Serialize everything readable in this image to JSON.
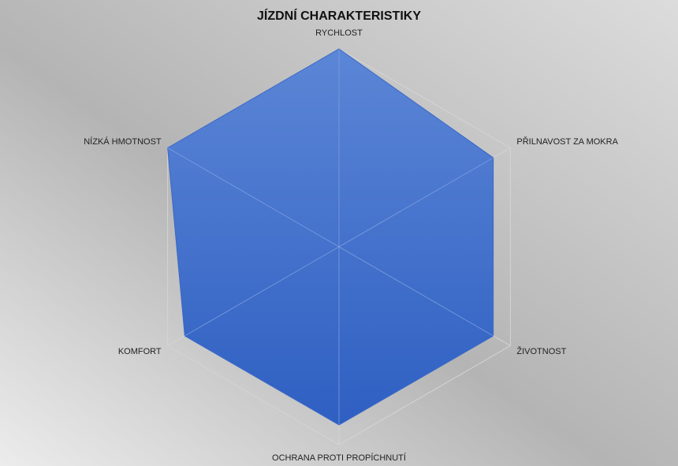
{
  "chart_data": {
    "type": "radar",
    "title": "JÍZDNÍ CHARAKTERISTIKY",
    "categories": [
      "RYCHLOST",
      "PŘILNAVOST ZA MOKRA",
      "ŽIVOTNOST",
      "OCHRANA PROTI PROPÍCHNUTÍ",
      "KOMFORT",
      "NÍZKÁ HMOTNOST"
    ],
    "values": [
      5,
      4.5,
      4.5,
      4.5,
      4.5,
      5
    ],
    "color": "#3f6fcf",
    "rlim": [
      0,
      5
    ],
    "rticks": [
      0,
      1,
      2,
      3,
      4,
      5
    ],
    "grid": true
  }
}
